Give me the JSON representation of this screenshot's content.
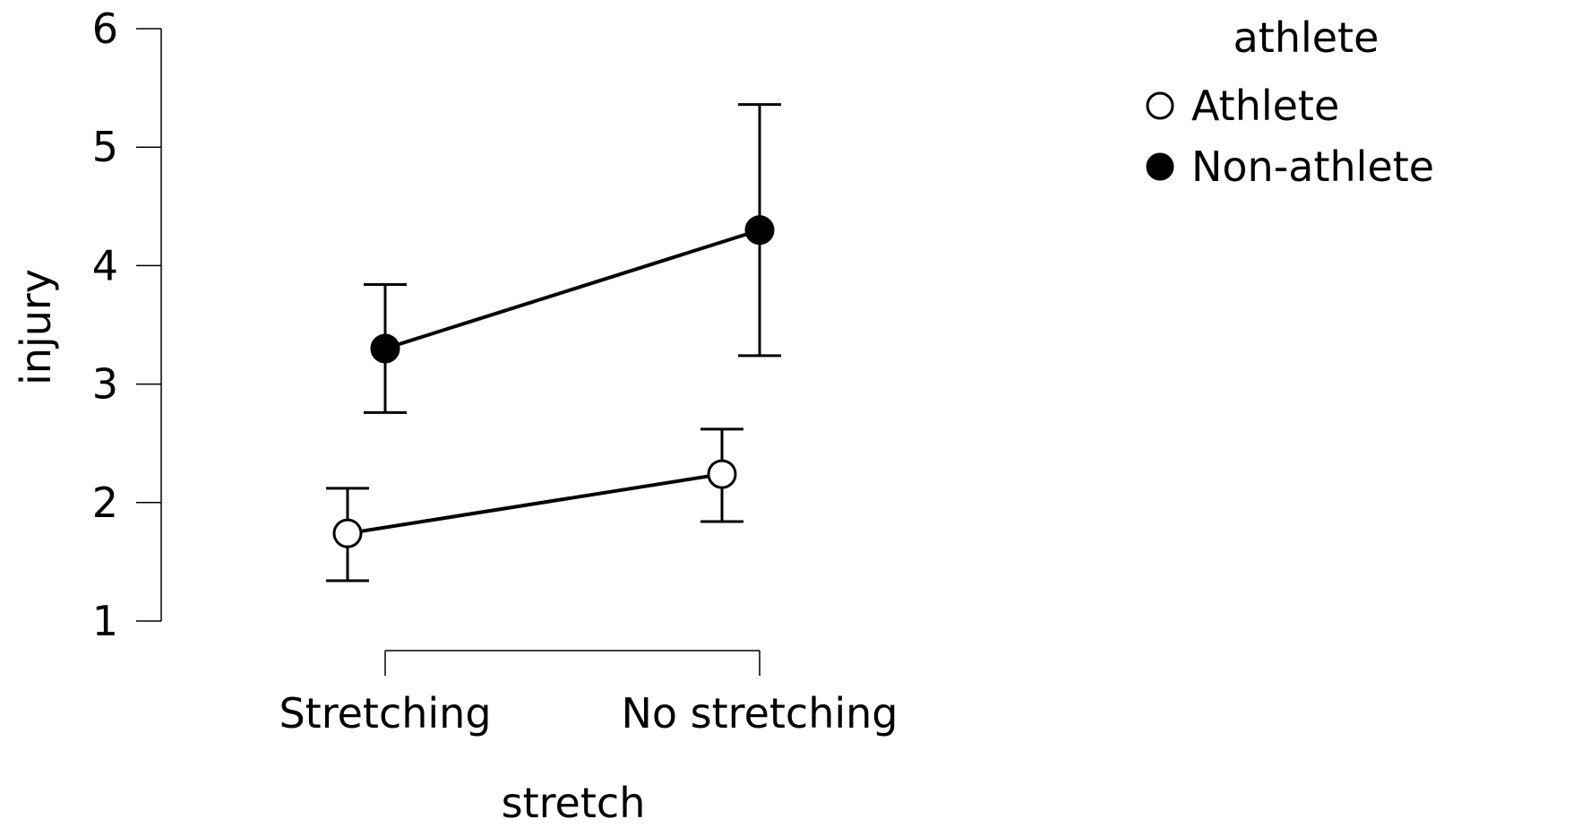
{
  "chart_data": {
    "type": "line",
    "xlabel": "stretch",
    "ylabel": "injury",
    "categories": [
      "Stretching",
      "No stretching"
    ],
    "ylim": [
      1,
      6
    ],
    "yticks": [
      1,
      2,
      3,
      4,
      5,
      6
    ],
    "legend": {
      "title": "athlete",
      "position": "top-right"
    },
    "series": [
      {
        "name": "Athlete",
        "marker": "open-circle",
        "values": [
          1.74,
          2.24
        ],
        "ci_lower": [
          1.34,
          1.84
        ],
        "ci_upper": [
          2.12,
          2.62
        ]
      },
      {
        "name": "Non-athlete",
        "marker": "filled-circle",
        "values": [
          3.3,
          4.3
        ],
        "ci_lower": [
          2.76,
          3.24
        ],
        "ci_upper": [
          3.84,
          5.36
        ]
      }
    ]
  }
}
